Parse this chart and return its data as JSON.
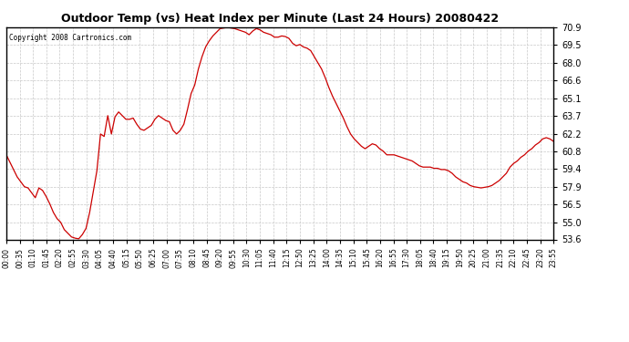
{
  "title": "Outdoor Temp (vs) Heat Index per Minute (Last 24 Hours) 20080422",
  "copyright": "Copyright 2008 Cartronics.com",
  "line_color": "#cc0000",
  "background_color": "#ffffff",
  "plot_bg_color": "#ffffff",
  "grid_color": "#c8c8c8",
  "yticks": [
    53.6,
    55.0,
    56.5,
    57.9,
    59.4,
    60.8,
    62.2,
    63.7,
    65.1,
    66.6,
    68.0,
    69.5,
    70.9
  ],
  "xtick_labels": [
    "00:00",
    "00:35",
    "01:10",
    "01:45",
    "02:20",
    "02:55",
    "03:30",
    "04:05",
    "04:40",
    "05:15",
    "05:50",
    "06:25",
    "07:00",
    "07:35",
    "08:10",
    "08:45",
    "09:20",
    "09:55",
    "10:30",
    "11:05",
    "11:40",
    "12:15",
    "12:50",
    "13:25",
    "14:00",
    "14:35",
    "15:10",
    "15:45",
    "16:20",
    "16:55",
    "17:30",
    "18:05",
    "18:40",
    "19:15",
    "19:50",
    "20:25",
    "21:00",
    "21:35",
    "22:10",
    "22:45",
    "23:20",
    "23:55"
  ],
  "ymin": 53.6,
  "ymax": 70.9,
  "curve": [
    60.5,
    59.9,
    59.3,
    58.7,
    58.3,
    57.9,
    57.8,
    57.4,
    57.0,
    57.8,
    57.6,
    57.1,
    56.5,
    55.8,
    55.3,
    55.0,
    54.4,
    54.1,
    53.8,
    53.7,
    53.65,
    54.0,
    54.5,
    55.8,
    57.5,
    59.2,
    62.2,
    62.0,
    63.7,
    62.2,
    63.6,
    64.0,
    63.7,
    63.4,
    63.4,
    63.5,
    63.0,
    62.6,
    62.5,
    62.7,
    62.9,
    63.4,
    63.7,
    63.5,
    63.3,
    63.2,
    62.5,
    62.2,
    62.5,
    63.0,
    64.2,
    65.5,
    66.2,
    67.5,
    68.5,
    69.3,
    69.8,
    70.2,
    70.5,
    70.8,
    70.85,
    70.9,
    70.85,
    70.8,
    70.7,
    70.6,
    70.5,
    70.3,
    70.6,
    70.8,
    70.7,
    70.5,
    70.4,
    70.3,
    70.1,
    70.1,
    70.2,
    70.15,
    70.0,
    69.6,
    69.4,
    69.5,
    69.3,
    69.2,
    69.0,
    68.5,
    68.0,
    67.5,
    66.8,
    66.0,
    65.3,
    64.7,
    64.1,
    63.5,
    62.8,
    62.2,
    61.8,
    61.5,
    61.2,
    61.0,
    61.2,
    61.4,
    61.3,
    61.0,
    60.8,
    60.5,
    60.5,
    60.5,
    60.4,
    60.3,
    60.2,
    60.1,
    60.0,
    59.8,
    59.6,
    59.5,
    59.5,
    59.5,
    59.4,
    59.4,
    59.3,
    59.3,
    59.2,
    59.0,
    58.7,
    58.5,
    58.3,
    58.2,
    58.0,
    57.9,
    57.85,
    57.8,
    57.85,
    57.9,
    58.0,
    58.2,
    58.4,
    58.7,
    59.0,
    59.5,
    59.8,
    60.0,
    60.3,
    60.5,
    60.8,
    61.0,
    61.3,
    61.5,
    61.8,
    61.9,
    61.8,
    61.6
  ]
}
